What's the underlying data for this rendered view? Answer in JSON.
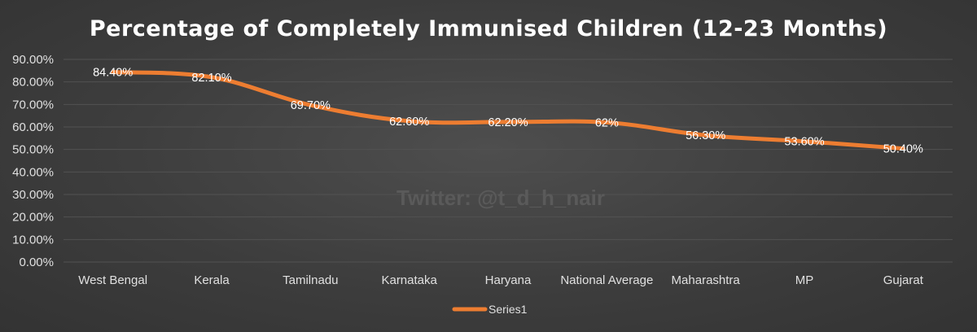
{
  "chart_data": {
    "type": "line",
    "title": "Percentage of Completely Immunised Children (12-23 Months)",
    "categories": [
      "West Bengal",
      "Kerala",
      "Tamilnadu",
      "Karnataka",
      "Haryana",
      "National Average",
      "Maharashtra",
      "MP",
      "Gujarat"
    ],
    "series": [
      {
        "name": "Series1",
        "values": [
          84.4,
          82.1,
          69.7,
          62.6,
          62.2,
          62,
          56.3,
          53.6,
          50.4
        ],
        "labels": [
          "84.40%",
          "82.10%",
          "69.70%",
          "62.60%",
          "62.20%",
          "62%",
          "56.30%",
          "53.60%",
          "50.40%"
        ],
        "color": "#ed7d31"
      }
    ],
    "ylim": [
      0,
      90
    ],
    "yticks": [
      "0.00%",
      "10.00%",
      "20.00%",
      "30.00%",
      "40.00%",
      "50.00%",
      "60.00%",
      "70.00%",
      "80.00%",
      "90.00%"
    ],
    "grid": true,
    "legend": "bottom",
    "watermark": "Twitter: @t_d_h_nair"
  }
}
